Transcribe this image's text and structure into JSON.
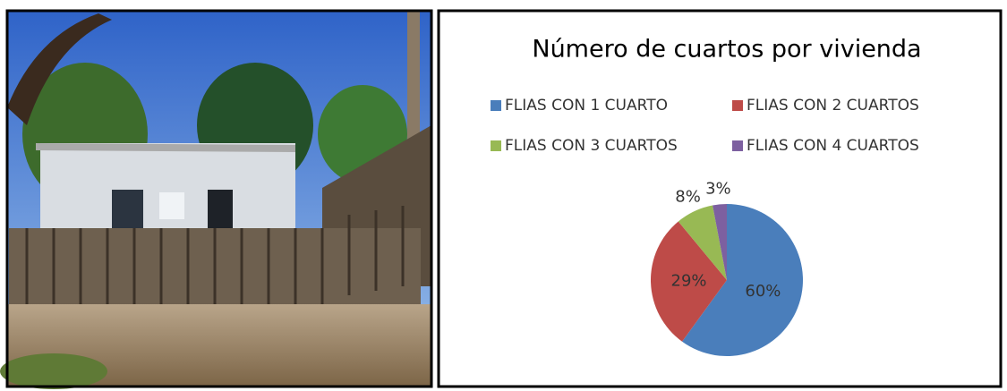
{
  "chart_data": {
    "type": "pie",
    "title": "Número de cuartos por vivienda",
    "categories": [
      "FLIAS CON 1 CUARTO",
      "FLIAS CON 2 CUARTOS",
      "FLIAS CON 3 CUARTOS",
      "FLIAS CON 4 CUARTOS"
    ],
    "values": [
      60,
      29,
      8,
      3
    ],
    "value_labels": [
      "60%",
      "29%",
      "8%",
      "3%"
    ],
    "colors": [
      "#4a7ebb",
      "#be4b48",
      "#98b954",
      "#7d60a0"
    ],
    "legend": "top"
  }
}
